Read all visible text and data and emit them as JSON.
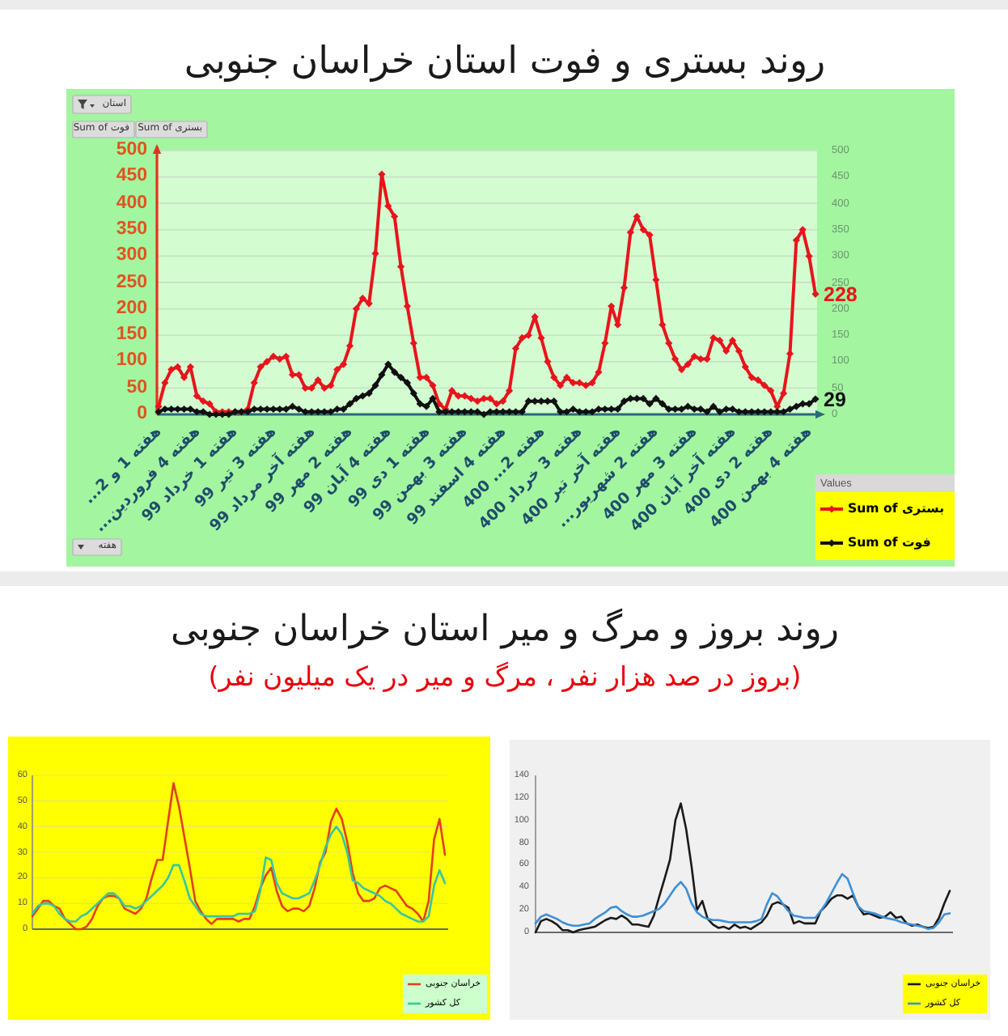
{
  "chart_data": [
    {
      "type": "line",
      "title": "روند بستری و فوت استان خراسان جنوبی",
      "categories": [
        "هفته 1 و 2...",
        null,
        null,
        null,
        null,
        null,
        "هفته 4 فروردین...",
        null,
        null,
        null,
        null,
        null,
        "هفته 1 خرداد 99",
        null,
        null,
        null,
        null,
        null,
        "هفته 3 تیر 99",
        null,
        null,
        null,
        null,
        null,
        "هفته آخر مرداد 99",
        null,
        null,
        null,
        null,
        null,
        "هفته 2 مهر 99",
        null,
        null,
        null,
        null,
        null,
        "هفته 4 آبان 99",
        null,
        null,
        null,
        null,
        null,
        "هفته 1 دی 99",
        null,
        null,
        null,
        null,
        null,
        "هفته 3 بهمن 99",
        null,
        null,
        null,
        null,
        null,
        "هفته 4 اسفند 99",
        null,
        null,
        null,
        null,
        null,
        "هفته 2... 400",
        null,
        null,
        null,
        null,
        null,
        "هفته 3 خرداد 400",
        null,
        null,
        null,
        null,
        null,
        "هفته آخر تیر 400",
        null,
        null,
        null,
        null,
        null,
        "هفته 2 شهریور...",
        null,
        null,
        null,
        null,
        null,
        "هفته 3 مهر 400",
        null,
        null,
        null,
        null,
        null,
        "هفته آخر آبان 400",
        null,
        null,
        null,
        null,
        null,
        "هفته 2 دی 400",
        null,
        null,
        null,
        null,
        null,
        "هفته 4 بهمن 400",
        null
      ],
      "series": [
        {
          "name": "Sum of بستری",
          "color": "#e8141c",
          "values": [
            15,
            60,
            85,
            90,
            70,
            90,
            35,
            25,
            20,
            5,
            5,
            5,
            5,
            5,
            10,
            60,
            90,
            100,
            110,
            105,
            110,
            75,
            75,
            50,
            50,
            65,
            50,
            55,
            85,
            95,
            130,
            200,
            220,
            210,
            305,
            455,
            395,
            375,
            280,
            205,
            135,
            70,
            70,
            55,
            20,
            10,
            45,
            35,
            35,
            30,
            25,
            30,
            30,
            20,
            25,
            45,
            125,
            145,
            150,
            185,
            145,
            100,
            70,
            55,
            70,
            60,
            60,
            55,
            60,
            80,
            135,
            205,
            170,
            240,
            345,
            375,
            350,
            340,
            255,
            170,
            135,
            105,
            85,
            95,
            110,
            105,
            105,
            145,
            140,
            120,
            140,
            120,
            90,
            70,
            65,
            55,
            45,
            15,
            40,
            115,
            330,
            350,
            300,
            228
          ],
          "value_labels": [
            null,
            null,
            null,
            null,
            null,
            null,
            null,
            null,
            null,
            null,
            null,
            null,
            null,
            null,
            null,
            null,
            null,
            null,
            null,
            null,
            null,
            null,
            null,
            null,
            null,
            null,
            null,
            null,
            null,
            null,
            null,
            null,
            null,
            null,
            null,
            null,
            null,
            null,
            null,
            null,
            null,
            null,
            null,
            null,
            null,
            null,
            null,
            null,
            null,
            null,
            null,
            null,
            null,
            null,
            null,
            null,
            null,
            null,
            null,
            null,
            null,
            null,
            null,
            null,
            null,
            null,
            null,
            null,
            null,
            null,
            null,
            null,
            null,
            null,
            null,
            null,
            null,
            null,
            null,
            null,
            null,
            null,
            null,
            null,
            null,
            null,
            null,
            null,
            null,
            null,
            null,
            null,
            null,
            null,
            null,
            null,
            null,
            null,
            null,
            null,
            null,
            null,
            null,
            "228"
          ]
        },
        {
          "name": "Sum of فوت",
          "color": "#101010",
          "values": [
            5,
            10,
            10,
            10,
            10,
            10,
            5,
            5,
            0,
            0,
            0,
            0,
            5,
            5,
            5,
            10,
            10,
            10,
            10,
            10,
            10,
            15,
            10,
            5,
            5,
            5,
            5,
            5,
            10,
            10,
            20,
            30,
            35,
            40,
            55,
            75,
            95,
            80,
            70,
            60,
            40,
            20,
            15,
            30,
            5,
            5,
            5,
            5,
            5,
            5,
            5,
            0,
            5,
            5,
            5,
            5,
            5,
            5,
            25,
            25,
            25,
            25,
            25,
            5,
            5,
            10,
            5,
            5,
            5,
            10,
            10,
            10,
            10,
            25,
            30,
            30,
            30,
            20,
            30,
            20,
            10,
            10,
            10,
            15,
            10,
            10,
            5,
            15,
            5,
            10,
            10,
            5,
            5,
            5,
            5,
            5,
            5,
            5,
            5,
            10,
            15,
            20,
            20,
            29
          ],
          "value_labels": [
            null,
            null,
            null,
            null,
            null,
            null,
            null,
            null,
            null,
            null,
            null,
            null,
            null,
            null,
            null,
            null,
            null,
            null,
            null,
            null,
            null,
            null,
            null,
            null,
            null,
            null,
            null,
            null,
            null,
            null,
            null,
            null,
            null,
            null,
            null,
            null,
            null,
            null,
            null,
            null,
            null,
            null,
            null,
            null,
            null,
            null,
            null,
            null,
            null,
            null,
            null,
            null,
            null,
            null,
            null,
            null,
            null,
            null,
            null,
            null,
            null,
            null,
            null,
            null,
            null,
            null,
            null,
            null,
            null,
            null,
            null,
            null,
            null,
            null,
            null,
            null,
            null,
            null,
            null,
            null,
            null,
            null,
            null,
            null,
            null,
            null,
            null,
            null,
            null,
            null,
            null,
            null,
            null,
            null,
            null,
            null,
            null,
            null,
            null,
            null,
            null,
            null,
            null,
            "29"
          ]
        }
      ],
      "ylim": [
        0,
        500
      ],
      "yticks": [
        0,
        50,
        100,
        150,
        200,
        250,
        300,
        350,
        400,
        450,
        500
      ],
      "y2lim": [
        0,
        500
      ],
      "y2ticks": [
        0,
        50,
        100,
        150,
        200,
        250,
        300,
        350,
        400,
        450,
        500
      ],
      "grid": "y",
      "legend": "bottom right",
      "legend_title": "Values",
      "marker": "diamond",
      "annotations": [
        "استان",
        "Sum of فوت",
        "Sum of بستری",
        "هفته"
      ]
    },
    {
      "type": "line",
      "title": "روند بروز و مرگ و میر استان خراسان جنوبی",
      "subtitle": "(بروز در صد هزار نفر ، مرگ و میر در یک میلیون نفر)",
      "categories": [
        null,
        null,
        null,
        null,
        null,
        null,
        null,
        null,
        null,
        null,
        null,
        null,
        null,
        null,
        null,
        null,
        null,
        null,
        null,
        null,
        null,
        null,
        null,
        null,
        null,
        null,
        null,
        null,
        null,
        null,
        null,
        null,
        null,
        null,
        null,
        null,
        null,
        null,
        null,
        null,
        null,
        null,
        null,
        null,
        null,
        null,
        null,
        null,
        null,
        null,
        null,
        null,
        null,
        null,
        null,
        null,
        null,
        null,
        null,
        null,
        null,
        null,
        null,
        null,
        null,
        null,
        null,
        null,
        null,
        null,
        null,
        null,
        null,
        null,
        null,
        null,
        null
      ],
      "series": [
        {
          "name": "خراسان جنوبی",
          "color": "#e2401a",
          "values": [
            5,
            8,
            11,
            11,
            9,
            8,
            4,
            2,
            0,
            0,
            1,
            4,
            9,
            12,
            13,
            13,
            12,
            8,
            7,
            6,
            8,
            12,
            20,
            27,
            27,
            42,
            57,
            48,
            36,
            24,
            11,
            7,
            4,
            2,
            4,
            4,
            4,
            4,
            3,
            4,
            4,
            9,
            16,
            21,
            24,
            15,
            9,
            7,
            8,
            8,
            7,
            9,
            16,
            26,
            30,
            42,
            47,
            43,
            34,
            22,
            14,
            11,
            11,
            12,
            16,
            17,
            16,
            15,
            12,
            9,
            8,
            6,
            3,
            11,
            35,
            43,
            29
          ]
        },
        {
          "name": "کل کشور",
          "color": "#36c6a4",
          "values": [
            6,
            9,
            10,
            10,
            9,
            6,
            4,
            3,
            3,
            5,
            6,
            8,
            10,
            12,
            14,
            14,
            12,
            9,
            9,
            8,
            9,
            11,
            13,
            15,
            17,
            20,
            25,
            25,
            19,
            12,
            9,
            6,
            5,
            5,
            5,
            5,
            5,
            5,
            6,
            6,
            6,
            7,
            15,
            28,
            27,
            18,
            14,
            13,
            12,
            12,
            13,
            14,
            19,
            25,
            32,
            37,
            40,
            37,
            30,
            19,
            18,
            16,
            15,
            14,
            13,
            11,
            10,
            8,
            6,
            5,
            4,
            3,
            3,
            5,
            17,
            23,
            18
          ]
        }
      ],
      "ylim": [
        0,
        60
      ],
      "yticks": [
        0,
        10,
        20,
        30,
        40,
        50,
        60
      ],
      "grid": "y",
      "legend": "bottom right"
    },
    {
      "type": "line",
      "categories": [
        null,
        null,
        null,
        null,
        null,
        null,
        null,
        null,
        null,
        null,
        null,
        null,
        null,
        null,
        null,
        null,
        null,
        null,
        null,
        null,
        null,
        null,
        null,
        null,
        null,
        null,
        null,
        null,
        null,
        null,
        null,
        null,
        null,
        null,
        null,
        null,
        null,
        null,
        null,
        null,
        null,
        null,
        null,
        null,
        null,
        null,
        null,
        null,
        null,
        null,
        null,
        null,
        null,
        null,
        null,
        null,
        null,
        null,
        null,
        null,
        null,
        null,
        null,
        null,
        null,
        null,
        null,
        null,
        null,
        null,
        null,
        null,
        null,
        null,
        null,
        null,
        null,
        null
      ],
      "series": [
        {
          "name": "خراسان جنوبی",
          "color": "#1a1a1a",
          "values": [
            0,
            10,
            12,
            10,
            7,
            2,
            2,
            0,
            2,
            3,
            4,
            5,
            8,
            11,
            13,
            12,
            15,
            12,
            7,
            7,
            6,
            5,
            15,
            32,
            48,
            65,
            100,
            115,
            92,
            59,
            20,
            28,
            12,
            7,
            4,
            5,
            3,
            7,
            4,
            5,
            3,
            6,
            9,
            15,
            25,
            27,
            25,
            22,
            8,
            10,
            8,
            8,
            8,
            19,
            24,
            30,
            33,
            33,
            30,
            33,
            23,
            16,
            17,
            15,
            13,
            14,
            18,
            13,
            14,
            8,
            6,
            7,
            5,
            4,
            5,
            13,
            26,
            37
          ]
        },
        {
          "name": "کل کشور",
          "color": "#3d8fd6",
          "values": [
            8,
            14,
            16,
            14,
            12,
            9,
            7,
            6,
            6,
            7,
            8,
            12,
            15,
            18,
            22,
            23,
            19,
            16,
            14,
            14,
            15,
            17,
            19,
            21,
            26,
            33,
            40,
            45,
            39,
            26,
            18,
            14,
            12,
            11,
            11,
            10,
            9,
            9,
            9,
            9,
            9,
            10,
            12,
            25,
            35,
            32,
            25,
            19,
            15,
            14,
            13,
            13,
            13,
            19,
            26,
            35,
            44,
            52,
            48,
            35,
            23,
            19,
            18,
            17,
            15,
            13,
            12,
            11,
            9,
            8,
            7,
            6,
            5,
            3,
            4,
            9,
            16,
            17
          ]
        }
      ],
      "ylim": [
        0,
        140
      ],
      "yticks": [
        0,
        20,
        40,
        60,
        80,
        100,
        120,
        140
      ],
      "legend": "bottom right"
    }
  ]
}
